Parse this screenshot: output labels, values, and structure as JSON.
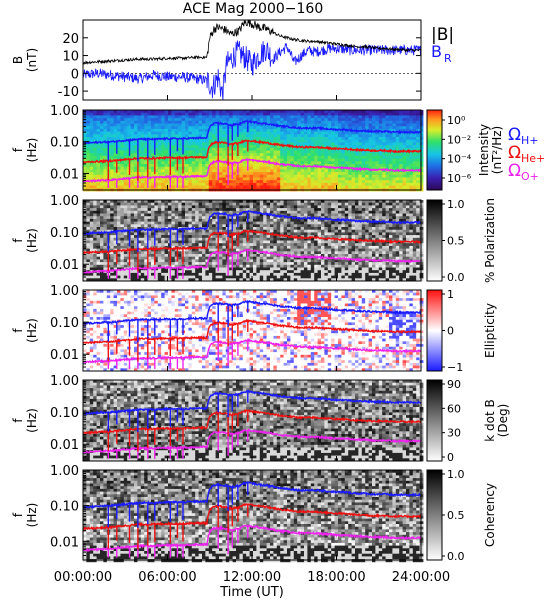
{
  "title": "ACE Mag 2000−160",
  "colors": {
    "blue": "#1a1aff",
    "red": "#ee1111",
    "magenta": "#ee22ee",
    "black": "#000000"
  },
  "legend": {
    "b_total": "|B|",
    "b_r_main": "B",
    "b_r_sub": "R",
    "omega_h": "Ω",
    "omega_h_sub": "H+",
    "omega_he": "Ω",
    "omega_he_sub": "He+",
    "omega_o": "Ω",
    "omega_o_sub": "O+"
  },
  "chart_data": [
    {
      "type": "line",
      "panel": "B",
      "ylabel_main": "B",
      "ylabel_unit": "(nT)",
      "ylim": [
        -15,
        30
      ],
      "yticks": [
        -10,
        0,
        10,
        20
      ],
      "xlim": [
        0,
        24
      ],
      "series": [
        {
          "name": "|B|",
          "color": "#000000",
          "x": [
            0,
            1,
            2,
            3,
            4,
            5,
            6,
            7,
            8,
            8.8,
            9.0,
            9.3,
            9.6,
            9.9,
            10.2,
            10.5,
            10.8,
            11.1,
            11.4,
            11.7,
            12,
            12.5,
            13,
            13.5,
            14,
            14.5,
            15,
            15.5,
            16,
            16.5,
            17,
            17.5,
            18,
            18.5,
            19,
            19.5,
            20,
            20.5,
            21,
            21.5,
            22,
            22.5,
            23,
            23.5,
            24
          ],
          "values": [
            6,
            6.5,
            7,
            7.5,
            8,
            8,
            8.5,
            8.5,
            9,
            9,
            20,
            25,
            26,
            25,
            24,
            22,
            23,
            24,
            28,
            29,
            28,
            26,
            25,
            23,
            21,
            20,
            19,
            18.5,
            18,
            18,
            17.5,
            17,
            16.5,
            16,
            15.5,
            15,
            15,
            14.5,
            14,
            14,
            13.5,
            13.5,
            13,
            13,
            13
          ]
        },
        {
          "name": "B",
          "color": "#1a1aff",
          "x": [
            0,
            1,
            2,
            3,
            4,
            5,
            6,
            7,
            8,
            8.8,
            9.2,
            9.6,
            9.9,
            10.2,
            10.5,
            11,
            11.5,
            12,
            12.5,
            13,
            13.5,
            14,
            14.5,
            15,
            15.5,
            16,
            16.5,
            17,
            17.5,
            18,
            18.5,
            19,
            19.5,
            20,
            20.5,
            21,
            21.5,
            22,
            22.5,
            23,
            23.5,
            24
          ],
          "values": [
            -1,
            0,
            -1,
            -2,
            -3,
            -1,
            -2,
            -2,
            -3,
            -4,
            -8,
            -2,
            -12,
            5,
            8,
            12,
            9,
            5,
            10,
            14,
            8,
            12,
            15,
            6,
            10,
            13,
            12,
            13,
            14,
            14,
            13.5,
            13,
            13,
            13,
            13,
            13,
            13,
            13,
            13,
            13,
            13,
            13
          ]
        }
      ]
    },
    {
      "type": "heatmap",
      "panel": "Intensity",
      "ylabel_main": "f",
      "ylabel_unit": "(Hz)",
      "ylim": [
        0.003,
        1.0
      ],
      "yscale": "log",
      "yticks": [
        "1.00",
        "0.10",
        "0.01"
      ],
      "colorbar_label": "Intensity",
      "colorbar_unit": "(nT²/Hz)",
      "colorbar_ticks": [
        "10⁰",
        "10⁻²",
        "10⁻⁴",
        "10⁻⁶"
      ]
    },
    {
      "type": "heatmap",
      "panel": "Polarization",
      "ylabel_main": "f",
      "ylabel_unit": "(Hz)",
      "ylim": [
        0.003,
        1.0
      ],
      "yscale": "log",
      "yticks": [
        "1.00",
        "0.10",
        "0.01"
      ],
      "colorbar_label": "% Polarization",
      "colorbar_ticks": [
        "1.0",
        "0.5",
        "0.0"
      ]
    },
    {
      "type": "heatmap",
      "panel": "Ellipticity",
      "ylabel_main": "f",
      "ylabel_unit": "(Hz)",
      "ylim": [
        0.003,
        1.0
      ],
      "yscale": "log",
      "yticks": [
        "1.00",
        "0.10",
        "0.01"
      ],
      "colorbar_label": "Ellipticity",
      "colorbar_ticks": [
        "1",
        "0",
        "−1"
      ]
    },
    {
      "type": "heatmap",
      "panel": "k dot B",
      "ylabel_main": "f",
      "ylabel_unit": "(Hz)",
      "ylim": [
        0.003,
        1.0
      ],
      "yscale": "log",
      "yticks": [
        "1.00",
        "0.10",
        "0.01"
      ],
      "colorbar_label": "k dot B",
      "colorbar_unit": "(Deg)",
      "colorbar_ticks": [
        "90",
        "60",
        "30",
        "0"
      ]
    },
    {
      "type": "heatmap",
      "panel": "Coherency",
      "ylabel_main": "f",
      "ylabel_unit": "(Hz)",
      "ylim": [
        0.003,
        1.0
      ],
      "yscale": "log",
      "yticks": [
        "1.00",
        "0.10",
        "0.01"
      ],
      "colorbar_label": "Coherency",
      "colorbar_ticks": [
        "1.0",
        "0.5",
        "0.0"
      ]
    }
  ],
  "gyrofrequency": {
    "x": [
      0,
      1,
      2,
      3,
      4,
      5,
      6,
      7,
      8,
      8.8,
      9.0,
      9.3,
      9.6,
      9.9,
      10.2,
      10.5,
      10.8,
      11.1,
      11.4,
      11.7,
      12,
      12.5,
      13,
      13.5,
      14,
      14.5,
      15,
      15.5,
      16,
      16.5,
      17,
      17.5,
      18,
      18.5,
      19,
      19.5,
      20,
      20.5,
      21,
      21.5,
      22,
      22.5,
      23,
      23.5,
      24
    ],
    "H": [
      0.09,
      0.095,
      0.1,
      0.11,
      0.12,
      0.12,
      0.125,
      0.125,
      0.13,
      0.13,
      0.3,
      0.37,
      0.39,
      0.37,
      0.36,
      0.33,
      0.35,
      0.36,
      0.42,
      0.44,
      0.42,
      0.39,
      0.37,
      0.34,
      0.31,
      0.3,
      0.28,
      0.27,
      0.27,
      0.27,
      0.26,
      0.25,
      0.24,
      0.24,
      0.23,
      0.22,
      0.22,
      0.21,
      0.21,
      0.21,
      0.2,
      0.2,
      0.2,
      0.2,
      0.2
    ]
  },
  "xaxis": {
    "label": "Time (UT)",
    "xlim": [
      0,
      24
    ],
    "ticks": [
      0,
      6,
      12,
      18,
      24
    ],
    "tick_labels": [
      "00:00:00",
      "06:00:00",
      "12:00:00",
      "18:00:00",
      "24:00:00"
    ]
  }
}
